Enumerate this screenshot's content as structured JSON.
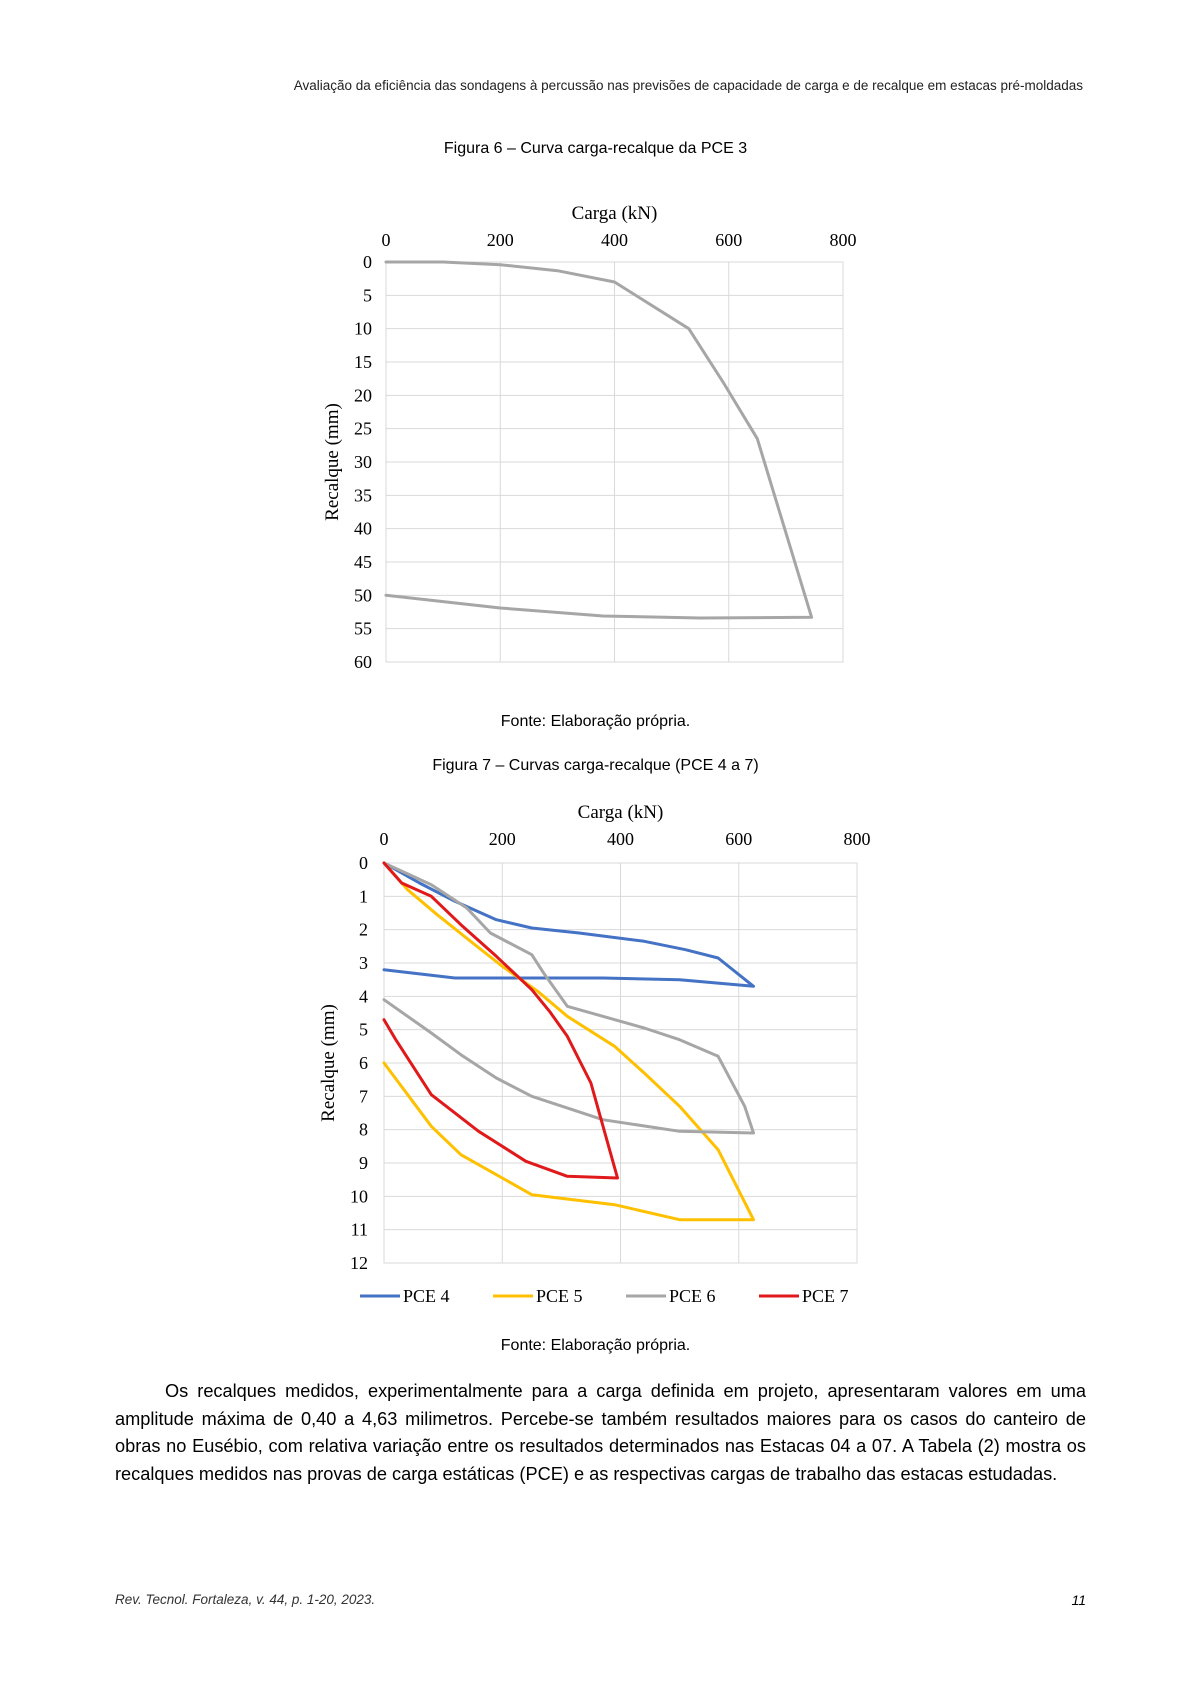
{
  "header": {
    "running_title": "Avaliação da eficiência das sondagens à percussão nas previsões de capacidade de carga e de recalque em estacas pré-moldadas"
  },
  "figures": [
    {
      "caption": "Figura 6 – Curva carga-recalque da PCE 3",
      "source": "Fonte: Elaboração própria."
    },
    {
      "caption": "Figura 7 – Curvas carga-recalque (PCE 4 a 7)",
      "source": "Fonte: Elaboração própria."
    }
  ],
  "chart_data": [
    {
      "type": "line",
      "title": "",
      "xlabel": "Carga (kN)",
      "ylabel": "Recalque (mm)",
      "xlim": [
        0,
        800
      ],
      "ylim": [
        0,
        60
      ],
      "x_ticks": [
        "0",
        "200",
        "400",
        "600",
        "800"
      ],
      "y_ticks": [
        "0",
        "5",
        "10",
        "15",
        "20",
        "25",
        "30",
        "35",
        "40",
        "45",
        "50",
        "55",
        "60"
      ],
      "x_axis_position": "top",
      "y_axis_inverted": true,
      "grid": true,
      "legend": "none",
      "series": [
        {
          "color": "#a6a6a6",
          "points": [
            [
              0,
              0
            ],
            [
              100,
              0
            ],
            [
              200,
              0.4
            ],
            [
              300,
              1.3
            ],
            [
              400,
              3
            ],
            [
              530,
              10
            ],
            [
              590,
              18
            ],
            [
              650,
              26.5
            ],
            [
              745,
              53.3
            ],
            [
              550,
              53.4
            ],
            [
              380,
              53.1
            ],
            [
              200,
              51.9
            ],
            [
              0,
              50
            ]
          ]
        }
      ]
    },
    {
      "type": "line",
      "title": "",
      "xlabel": "Carga (kN)",
      "ylabel": "Recalque (mm)",
      "xlim": [
        0,
        800
      ],
      "ylim": [
        0,
        12
      ],
      "x_ticks": [
        "0",
        "200",
        "400",
        "600",
        "800"
      ],
      "y_ticks": [
        "0",
        "1",
        "2",
        "3",
        "4",
        "5",
        "6",
        "7",
        "8",
        "9",
        "10",
        "11",
        "12"
      ],
      "x_axis_position": "top",
      "y_axis_inverted": true,
      "grid": true,
      "legend": "bottom",
      "series": [
        {
          "name": "PCE 4",
          "color": "#4472c4",
          "points": [
            [
              0,
              0
            ],
            [
              60,
              0.6
            ],
            [
              120,
              1.15
            ],
            [
              190,
              1.7
            ],
            [
              250,
              1.95
            ],
            [
              330,
              2.1
            ],
            [
              440,
              2.35
            ],
            [
              510,
              2.6
            ],
            [
              565,
              2.85
            ],
            [
              625,
              3.7
            ],
            [
              500,
              3.5
            ],
            [
              370,
              3.45
            ],
            [
              250,
              3.45
            ],
            [
              120,
              3.45
            ],
            [
              0,
              3.2
            ]
          ]
        },
        {
          "name": "PCE 5",
          "color": "#ffc000",
          "points": [
            [
              0,
              0
            ],
            [
              40,
              0.8
            ],
            [
              90,
              1.55
            ],
            [
              150,
              2.4
            ],
            [
              200,
              3.1
            ],
            [
              260,
              3.85
            ],
            [
              310,
              4.6
            ],
            [
              390,
              5.5
            ],
            [
              440,
              6.3
            ],
            [
              500,
              7.3
            ],
            [
              565,
              8.6
            ],
            [
              625,
              10.7
            ],
            [
              500,
              10.7
            ],
            [
              390,
              10.25
            ],
            [
              250,
              9.95
            ],
            [
              130,
              8.75
            ],
            [
              80,
              7.9
            ],
            [
              0,
              6
            ]
          ]
        },
        {
          "name": "PCE 6",
          "color": "#a6a6a6",
          "points": [
            [
              0,
              0
            ],
            [
              80,
              0.65
            ],
            [
              140,
              1.35
            ],
            [
              180,
              2.1
            ],
            [
              250,
              2.75
            ],
            [
              270,
              3.3
            ],
            [
              310,
              4.3
            ],
            [
              440,
              4.95
            ],
            [
              500,
              5.3
            ],
            [
              565,
              5.8
            ],
            [
              610,
              7.3
            ],
            [
              625,
              8.1
            ],
            [
              500,
              8.05
            ],
            [
              370,
              7.7
            ],
            [
              250,
              7.0
            ],
            [
              190,
              6.45
            ],
            [
              130,
              5.75
            ],
            [
              80,
              5.1
            ],
            [
              0,
              4.1
            ]
          ]
        },
        {
          "name": "PCE 7",
          "color": "#e0191b",
          "points": [
            [
              0,
              0
            ],
            [
              30,
              0.6
            ],
            [
              80,
              1.0
            ],
            [
              130,
              1.85
            ],
            [
              190,
              2.8
            ],
            [
              250,
              3.8
            ],
            [
              280,
              4.45
            ],
            [
              310,
              5.2
            ],
            [
              350,
              6.6
            ],
            [
              395,
              9.45
            ],
            [
              310,
              9.4
            ],
            [
              240,
              8.95
            ],
            [
              200,
              8.5
            ],
            [
              160,
              8.05
            ],
            [
              80,
              6.95
            ],
            [
              20,
              5.3
            ],
            [
              0,
              4.7
            ]
          ]
        }
      ]
    }
  ],
  "body": {
    "paragraph": "Os recalques medidos, experimentalmente para a carga definida em projeto, apresentaram valores em uma amplitude máxima de 0,40 a 4,63 milimetros. Percebe-se também resultados maiores para os casos do canteiro de obras no Eusébio, com relativa variação entre os resultados determinados nas Estacas 04 a 07. A Tabela (2) mostra os recalques medidos nas provas de carga estáticas (PCE) e as respectivas cargas de trabalho das estacas estudadas."
  },
  "footer": {
    "journal": "Rev. Tecnol. Fortaleza, v. 44, p. 1-20, 2023.",
    "page_number": "11"
  }
}
